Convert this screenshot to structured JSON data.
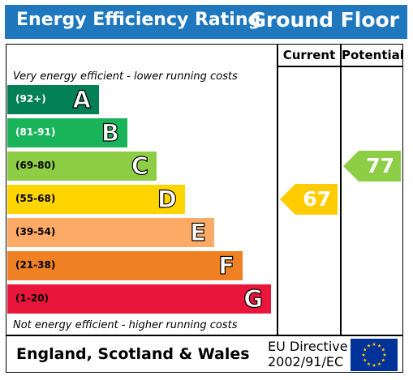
{
  "header": {
    "title": "Energy Efficiency Rating",
    "floor": "Ground Floor"
  },
  "columns": {
    "current": "Current",
    "potential": "Potential"
  },
  "notes": {
    "top": "Very energy efficient - lower running costs",
    "bottom": "Not energy efficient - higher running costs"
  },
  "footer": {
    "country": "England, Scotland & Wales",
    "directive_line1": "EU Directive",
    "directive_line2": "2002/91/EC",
    "flag_icon": "eu-flag-icon"
  },
  "chart_data": {
    "type": "bar",
    "bands": [
      {
        "letter": "A",
        "range": "(92+)",
        "color": "#008054"
      },
      {
        "letter": "B",
        "range": "(81-91)",
        "color": "#19b459"
      },
      {
        "letter": "C",
        "range": "(69-80)",
        "color": "#8dce46"
      },
      {
        "letter": "D",
        "range": "(55-68)",
        "color": "#ffd500"
      },
      {
        "letter": "E",
        "range": "(39-54)",
        "color": "#fcaa65"
      },
      {
        "letter": "F",
        "range": "(21-38)",
        "color": "#ef8023"
      },
      {
        "letter": "G",
        "range": "(1-20)",
        "color": "#e9153b"
      }
    ],
    "current": {
      "value": 67,
      "band": "D",
      "color": "#ffcc00"
    },
    "potential": {
      "value": 77,
      "band": "C",
      "color": "#8dce46"
    }
  }
}
